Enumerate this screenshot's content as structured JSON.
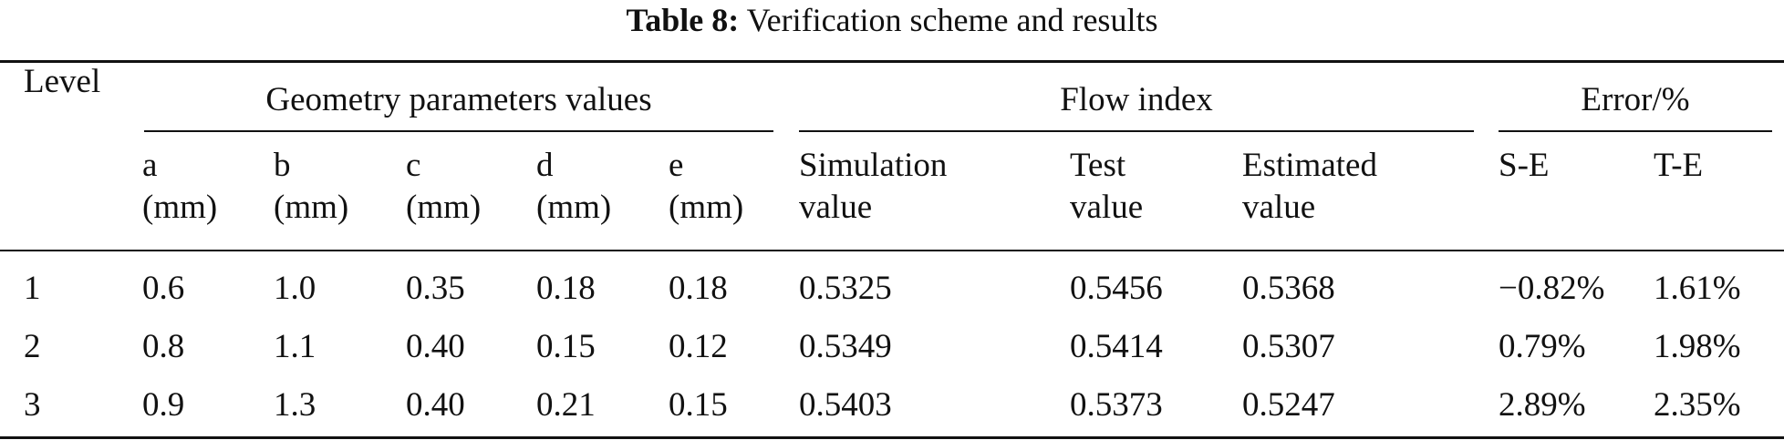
{
  "table": {
    "caption_label": "Table 8:",
    "caption_text": "Verification scheme and results",
    "headers": {
      "level": "Level",
      "geometry_group": "Geometry parameters values",
      "flow_group": "Flow index",
      "error_group": "Error/%",
      "columns": [
        {
          "l1": "a",
          "l2": "(mm)"
        },
        {
          "l1": "b",
          "l2": "(mm)"
        },
        {
          "l1": "c",
          "l2": "(mm)"
        },
        {
          "l1": "d",
          "l2": "(mm)"
        },
        {
          "l1": "e",
          "l2": "(mm)"
        },
        {
          "l1": "Simulation",
          "l2": "value"
        },
        {
          "l1": "Test",
          "l2": "value"
        },
        {
          "l1": "Estimated",
          "l2": "value"
        },
        {
          "l1": "S-E",
          "l2": ""
        },
        {
          "l1": "T-E",
          "l2": ""
        }
      ]
    },
    "rows": [
      [
        "1",
        "0.6",
        "1.0",
        "0.35",
        "0.18",
        "0.18",
        "0.5325",
        "0.5456",
        "0.5368",
        "−0.82%",
        "1.61%"
      ],
      [
        "2",
        "0.8",
        "1.1",
        "0.40",
        "0.15",
        "0.12",
        "0.5349",
        "0.5414",
        "0.5307",
        "0.79%",
        "1.98%"
      ],
      [
        "3",
        "0.9",
        "1.3",
        "0.40",
        "0.21",
        "0.15",
        "0.5403",
        "0.5373",
        "0.5247",
        "2.89%",
        "2.35%"
      ]
    ]
  }
}
